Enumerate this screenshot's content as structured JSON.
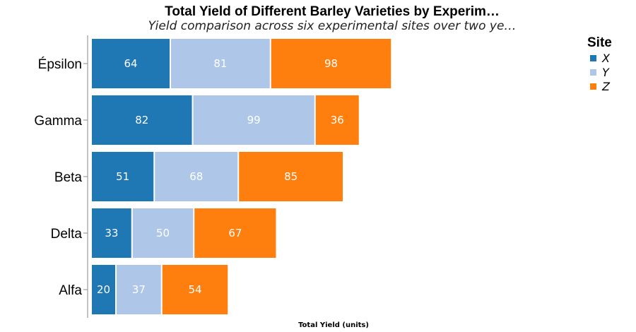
{
  "chart_data": {
    "type": "bar",
    "orientation": "horizontal",
    "stacked": true,
    "title": "Total Yield of Different Barley Varieties by Experim…",
    "subtitle": "Yield comparison across six experimental sites over two ye…",
    "xlabel": "Total Yield (units)",
    "ylabel": "",
    "categories": [
      "Alfa",
      "Delta",
      "Beta",
      "Gamma",
      "Épsilon"
    ],
    "series": [
      {
        "name": "X",
        "color": "#1f77b4",
        "values": [
          20,
          33,
          51,
          82,
          64
        ]
      },
      {
        "name": "Y",
        "color": "#aec7e8",
        "values": [
          37,
          50,
          68,
          99,
          81
        ]
      },
      {
        "name": "Z",
        "color": "#ff7f0e",
        "values": [
          54,
          67,
          85,
          36,
          98
        ]
      }
    ],
    "xlim": [
      0,
      250
    ],
    "grid": false,
    "legend": {
      "title": "Site",
      "position": "top-right"
    }
  }
}
